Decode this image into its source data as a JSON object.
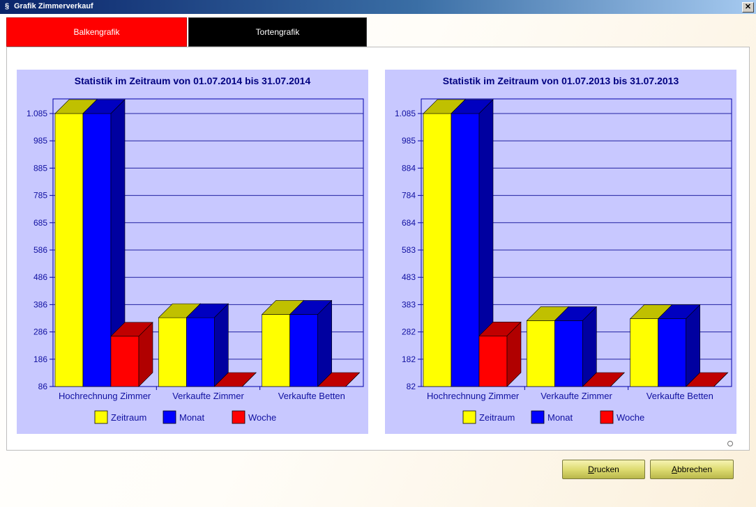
{
  "window": {
    "title": "Grafik Zimmerverkauf",
    "close_glyph": "✕",
    "app_icon": "app-icon"
  },
  "tabs": [
    {
      "label": "Balkengrafik",
      "active": true,
      "color": "#ff0000"
    },
    {
      "label": "Tortengrafik",
      "active": false,
      "color": "#000000"
    }
  ],
  "buttons": {
    "print": {
      "accel": "D",
      "rest": "rucken"
    },
    "cancel": {
      "accel": "A",
      "rest": "bbrechen"
    }
  },
  "colors": {
    "chart_bg": "#c8c8ff",
    "axis": "#0000aa",
    "grid": "#2020a0",
    "text": "#1010a0",
    "title": "#000080",
    "series": [
      {
        "front": "#ffff00",
        "top": "#c0c000",
        "side": "#b0b000"
      },
      {
        "front": "#0000ff",
        "top": "#0000c0",
        "side": "#0000a0"
      },
      {
        "front": "#ff0000",
        "top": "#c00000",
        "side": "#b00000"
      }
    ]
  },
  "chart_data": [
    {
      "type": "bar",
      "title": "Statistik im Zeitraum von 01.07.2014 bis 31.07.2014",
      "categories": [
        "Hochrechnung Zimmer",
        "Verkaufte Zimmer",
        "Verkaufte Betten"
      ],
      "series": [
        {
          "name": "Zeitraum",
          "values": [
            1085,
            338,
            350
          ]
        },
        {
          "name": "Monat",
          "values": [
            1085,
            338,
            350
          ]
        },
        {
          "name": "Woche",
          "values": [
            270,
            86,
            86
          ]
        }
      ],
      "ylim": [
        86,
        1085
      ],
      "yticks": [
        "86",
        "186",
        "286",
        "386",
        "486",
        "586",
        "685",
        "785",
        "885",
        "985",
        "1.085"
      ],
      "legend": "bottom",
      "grid": true
    },
    {
      "type": "bar",
      "title": "Statistik im Zeitraum von 01.07.2013 bis 31.07.2013",
      "categories": [
        "Hochrechnung Zimmer",
        "Verkaufte Zimmer",
        "Verkaufte Betten"
      ],
      "series": [
        {
          "name": "Zeitraum",
          "values": [
            1085,
            324,
            331
          ]
        },
        {
          "name": "Monat",
          "values": [
            1085,
            324,
            331
          ]
        },
        {
          "name": "Woche",
          "values": [
            268,
            82,
            82
          ]
        }
      ],
      "ylim": [
        82,
        1085
      ],
      "yticks": [
        "82",
        "182",
        "282",
        "383",
        "483",
        "583",
        "684",
        "784",
        "884",
        "985",
        "1.085"
      ],
      "legend": "bottom",
      "grid": true
    }
  ]
}
